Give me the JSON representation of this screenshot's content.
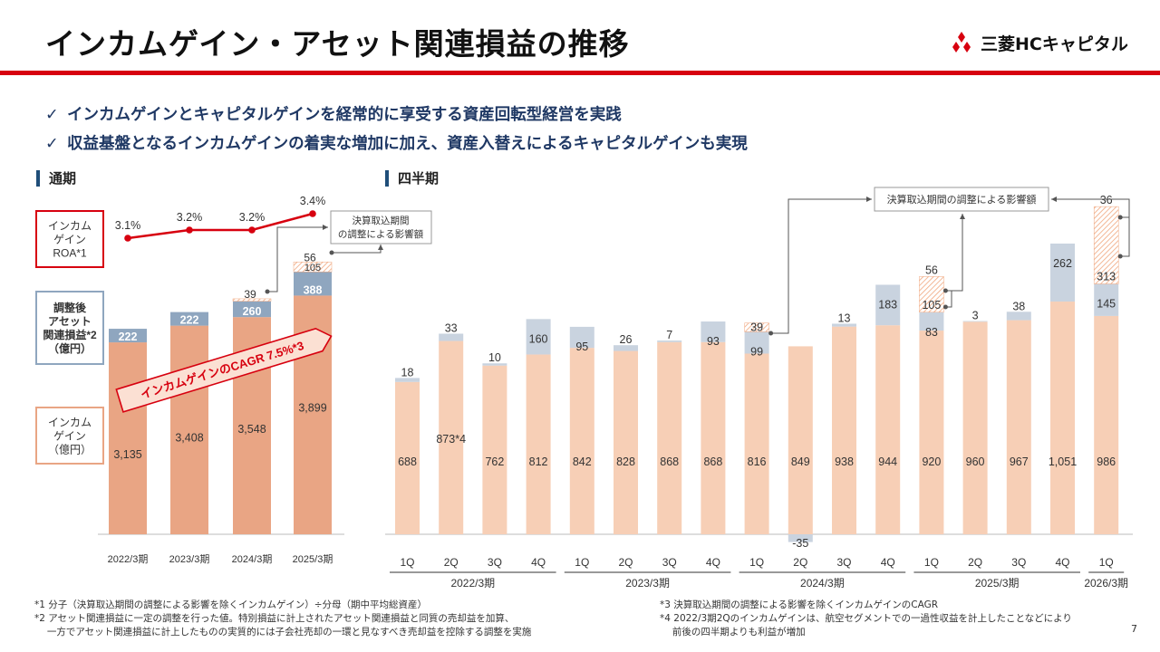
{
  "header": {
    "title": "インカムゲイン・アセット関連損益の推移",
    "logo_text": "三菱HCキャピタル"
  },
  "bullets": [
    "インカムゲインとキャピタルゲインを経常的に享受する資産回転型経営を実践",
    "収益基盤となるインカムゲインの着実な増加に加え、資産入替えによるキャピタルゲインも実現"
  ],
  "sections": {
    "annual": "通期",
    "quarterly": "四半期"
  },
  "colors": {
    "income": "#f7cfb6",
    "income_annual": "#e9a584",
    "asset": "#c9d3df",
    "asset_annual": "#8fa6bf",
    "accent_red": "#d7000f"
  },
  "chart_data": [
    {
      "type": "bar",
      "stacked": true,
      "name": "annual",
      "categories": [
        "2022/3期",
        "2023/3期",
        "2024/3期",
        "2025/3期"
      ],
      "series": [
        {
          "name": "インカムゲイン",
          "values": [
            3135,
            3408,
            3548,
            3899
          ]
        },
        {
          "name": "調整後アセット関連損益",
          "values": [
            222,
            222,
            260,
            388
          ]
        },
        {
          "name": "決算取込期間の調整による影響額",
          "values": [
            0,
            0,
            39,
            161
          ]
        }
      ],
      "adjustment_labels": {
        "2024/3期": [
          "39"
        ],
        "2025/3期": [
          "105",
          "56"
        ]
      },
      "value_labels": {
        "income": [
          "3,135",
          "3,408",
          "3,548",
          "3,899"
        ],
        "asset": [
          "222",
          "222",
          "260",
          "388"
        ]
      },
      "legend": {
        "roa": [
          "インカム",
          "ゲイン",
          "ROA*1"
        ],
        "asset": [
          "調整後",
          "アセット",
          "関連損益*2",
          "（億円）"
        ],
        "income": [
          "インカム",
          "ゲイン",
          "（億円）"
        ]
      },
      "roa_line": {
        "name": "インカムゲインROA",
        "values": [
          3.1,
          3.2,
          3.2,
          3.4
        ],
        "labels": [
          "3.1%",
          "3.2%",
          "3.2%",
          "3.4%"
        ]
      },
      "cagr_annotation": "インカムゲインのCAGR 7.5%*3",
      "callout": [
        "決算取込期間",
        "の調整による影響額"
      ]
    },
    {
      "type": "bar",
      "stacked": true,
      "name": "quarterly",
      "categories": [
        "1Q",
        "2Q",
        "3Q",
        "4Q",
        "1Q",
        "2Q",
        "3Q",
        "4Q",
        "1Q",
        "2Q",
        "3Q",
        "4Q",
        "1Q",
        "2Q",
        "3Q",
        "4Q",
        "1Q"
      ],
      "groups": [
        {
          "label": "2022/3期",
          "count": 4
        },
        {
          "label": "2023/3期",
          "count": 4
        },
        {
          "label": "2024/3期",
          "count": 4
        },
        {
          "label": "2025/3期",
          "count": 4
        },
        {
          "label": "2026/3期",
          "count": 1
        }
      ],
      "series": [
        {
          "name": "インカムゲイン",
          "values": [
            688,
            873,
            762,
            812,
            842,
            828,
            868,
            868,
            816,
            849,
            938,
            944,
            920,
            960,
            967,
            1051,
            986
          ]
        },
        {
          "name": "調整後アセット関連損益",
          "values": [
            18,
            33,
            10,
            160,
            95,
            26,
            7,
            93,
            99,
            -35,
            13,
            183,
            83,
            3,
            38,
            262,
            145
          ]
        },
        {
          "name": "決算取込期間の調整による影響額",
          "values": [
            0,
            0,
            0,
            0,
            0,
            0,
            0,
            0,
            39,
            0,
            0,
            0,
            161,
            0,
            0,
            0,
            349
          ]
        }
      ],
      "income_labels": [
        "688",
        "873*4",
        "762",
        "812",
        "842",
        "828",
        "868",
        "868",
        "816",
        "849",
        "938",
        "944",
        "920",
        "960",
        "967",
        "1,051",
        "986"
      ],
      "asset_labels": [
        "18",
        "33",
        "10",
        "160",
        "95",
        "26",
        "7",
        "93",
        "99",
        "-35",
        "13",
        "183",
        "83",
        "3",
        "38",
        "262",
        "145"
      ],
      "adjustment_labels": {
        "8": [
          "39"
        ],
        "12": [
          "105",
          "56"
        ],
        "16": [
          "313",
          "36"
        ]
      },
      "callout": "決算取込期間の調整による影響額"
    }
  ],
  "footnotes": {
    "left": [
      "*1 分子（決算取込期間の調整による影響を除くインカムゲイン）÷分母（期中平均総資産）",
      "*2 アセット関連損益に一定の調整を行った値。特別損益に計上されたアセット関連損益と同質の売却益を加算、",
      "　 一方でアセット関連損益に計上したものの実質的には子会社売却の一環と見なすべき売却益を控除する調整を実施"
    ],
    "right": [
      "*3 決算取込期間の調整による影響を除くインカムゲインのCAGR",
      "*4 2022/3期2Qのインカムゲインは、航空セグメントでの一過性収益を計上したことなどにより",
      "　 前後の四半期よりも利益が増加"
    ]
  },
  "page_number": "7"
}
